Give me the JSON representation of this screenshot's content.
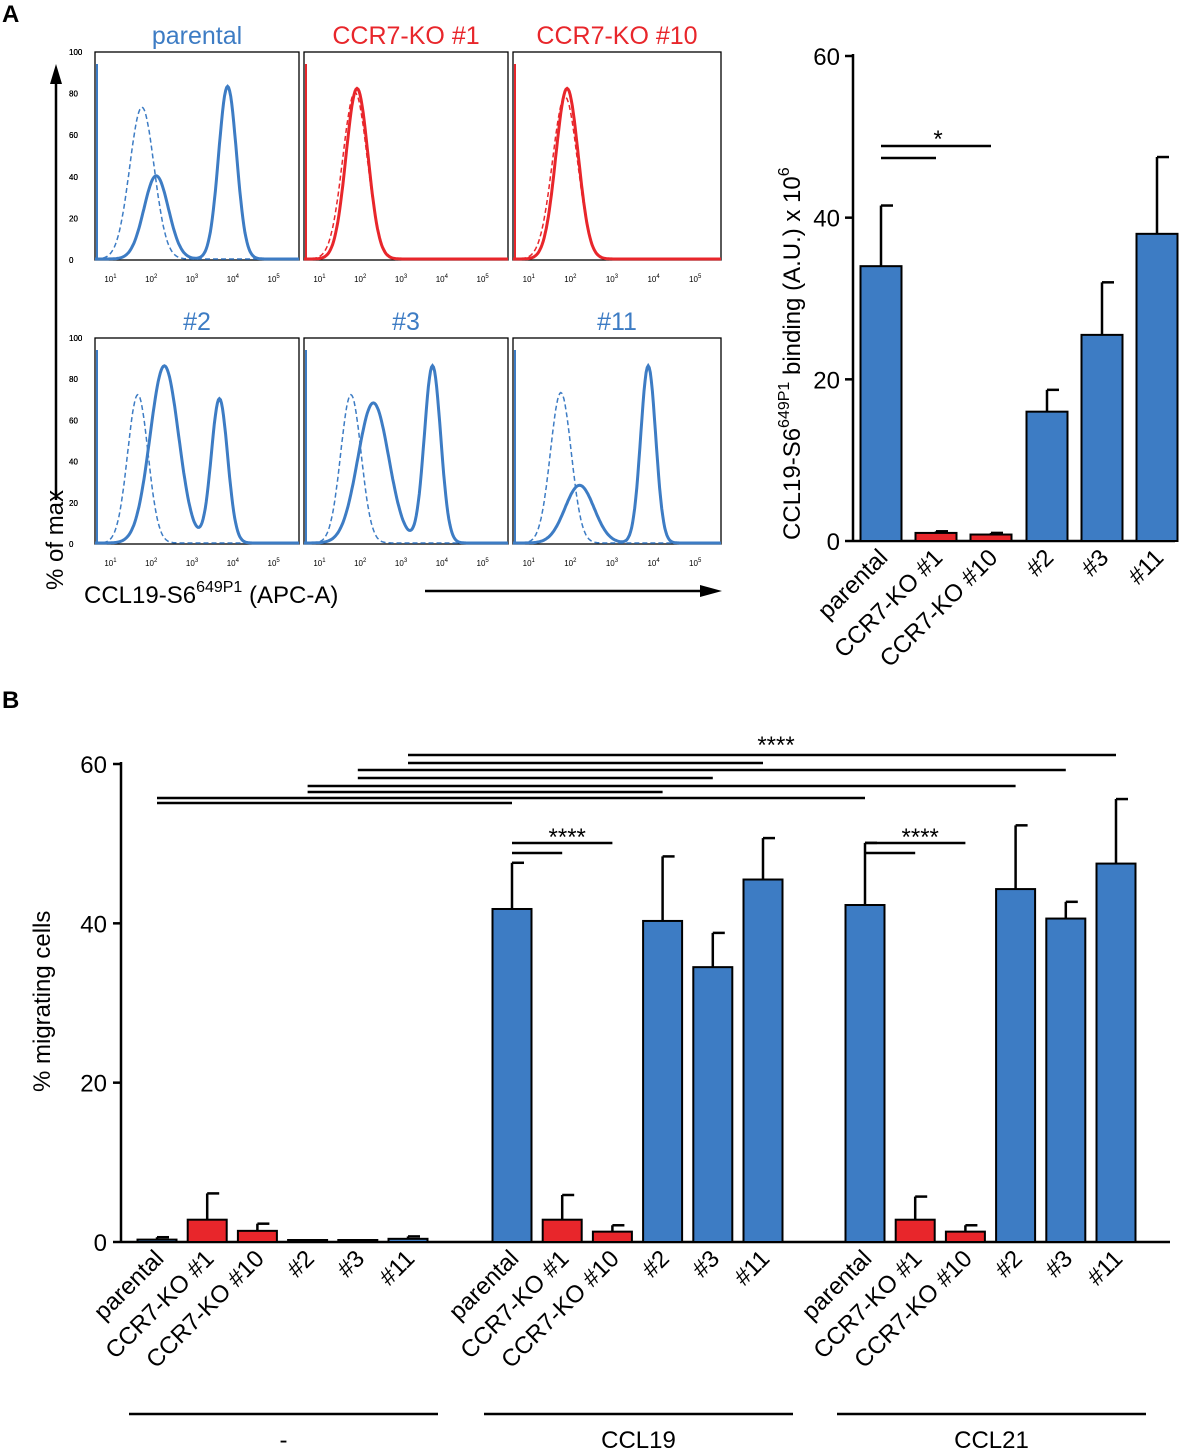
{
  "figure": {
    "panel_a_label": "A",
    "panel_b_label": "B",
    "colors": {
      "blue": "#3d7cc4",
      "red": "#e8262b",
      "black": "#000000"
    }
  },
  "chart_data": [
    {
      "type": "histogram_grid",
      "panel": "A (left)",
      "ylabel": "% of max",
      "xlabel_main": "CCL19-S6",
      "xlabel_sup": "649P1",
      "xlabel_tail": " (APC-A)",
      "y_ticks": [
        0,
        20,
        40,
        60,
        80,
        100
      ],
      "x_ticks": [
        {
          "base": "10",
          "exp": "1"
        },
        {
          "base": "10",
          "exp": "2"
        },
        {
          "base": "10",
          "exp": "3"
        },
        {
          "base": "10",
          "exp": "4"
        },
        {
          "base": "10",
          "exp": "5"
        }
      ],
      "panels": [
        {
          "title": "parental",
          "color": "blue",
          "solid_peaks": [
            {
              "x": 2.1,
              "h": 40,
              "w": 0.3
            },
            {
              "x": 3.85,
              "h": 83,
              "w": 0.22
            }
          ],
          "dashed_peaks": [
            {
              "x": 1.75,
              "h": 73,
              "w": 0.3
            }
          ]
        },
        {
          "title": "CCR7-KO #1",
          "color": "red",
          "solid_peaks": [
            {
              "x": 1.9,
              "h": 82,
              "w": 0.27
            }
          ],
          "dashed_peaks": [
            {
              "x": 1.85,
              "h": 80,
              "w": 0.3
            }
          ]
        },
        {
          "title": "CCR7-KO #10",
          "color": "red",
          "solid_peaks": [
            {
              "x": 1.9,
              "h": 82,
              "w": 0.27
            }
          ],
          "dashed_peaks": [
            {
              "x": 1.85,
              "h": 78,
              "w": 0.3
            }
          ]
        },
        {
          "title": "#2",
          "color": "blue",
          "solid_peaks": [
            {
              "x": 2.3,
              "h": 86,
              "w": 0.35
            },
            {
              "x": 3.65,
              "h": 70,
              "w": 0.2
            }
          ],
          "dashed_peaks": [
            {
              "x": 1.65,
              "h": 72,
              "w": 0.25
            }
          ]
        },
        {
          "title": "#3",
          "color": "blue",
          "solid_peaks": [
            {
              "x": 2.3,
              "h": 68,
              "w": 0.38
            },
            {
              "x": 3.75,
              "h": 86,
              "w": 0.2
            }
          ],
          "dashed_peaks": [
            {
              "x": 1.75,
              "h": 72,
              "w": 0.25
            }
          ]
        },
        {
          "title": "#11",
          "color": "blue",
          "solid_peaks": [
            {
              "x": 2.2,
              "h": 28,
              "w": 0.35
            },
            {
              "x": 3.85,
              "h": 86,
              "w": 0.18
            }
          ],
          "dashed_peaks": [
            {
              "x": 1.75,
              "h": 73,
              "w": 0.25
            }
          ]
        }
      ]
    },
    {
      "type": "bar",
      "panel": "A (right)",
      "ylabel_main": "CCL19-S6",
      "ylabel_sup": "649P1",
      "ylabel_mid": " binding (A.U.) x 10",
      "ylabel_sup2": "6",
      "ylim": [
        0,
        60
      ],
      "y_ticks": [
        0,
        20,
        40,
        60
      ],
      "categories": [
        "parental",
        "CCR7-KO #1",
        "CCR7-KO #10",
        "#2",
        "#3",
        "#11"
      ],
      "values": [
        34,
        1,
        0.8,
        16,
        25.5,
        38
      ],
      "errors": [
        7.5,
        0.2,
        0.2,
        2.7,
        6.5,
        9.5
      ],
      "colors": [
        "blue",
        "red",
        "red",
        "blue",
        "blue",
        "blue"
      ],
      "significance": [
        {
          "label": "*",
          "from": 0,
          "to": [
            1,
            2
          ]
        }
      ]
    },
    {
      "type": "bar",
      "panel": "B",
      "ylabel": "% migrating cells",
      "ylim": [
        0,
        60
      ],
      "y_ticks": [
        0,
        20,
        40,
        60
      ],
      "categories": [
        "parental",
        "CCR7-KO #1",
        "CCR7-KO #10",
        "#2",
        "#3",
        "#11"
      ],
      "groups": [
        {
          "label": "-",
          "values": [
            0.3,
            2.8,
            1.4,
            0.1,
            0.1,
            0.4
          ],
          "errors": [
            0.3,
            3.3,
            0.9,
            0.1,
            0.1,
            0.3
          ]
        },
        {
          "label": "CCL19",
          "values": [
            41.8,
            2.8,
            1.3,
            40.3,
            34.5,
            45.5
          ],
          "errors": [
            5.8,
            3.1,
            0.8,
            8.1,
            4.3,
            5.2
          ]
        },
        {
          "label": "CCL21",
          "values": [
            42.3,
            2.8,
            1.3,
            44.3,
            40.6,
            47.5
          ],
          "errors": [
            7.8,
            2.9,
            0.8,
            8.0,
            2.1,
            8.1
          ]
        }
      ],
      "colors": [
        "blue",
        "red",
        "red",
        "blue",
        "blue",
        "blue"
      ],
      "significance_label": "****"
    }
  ]
}
